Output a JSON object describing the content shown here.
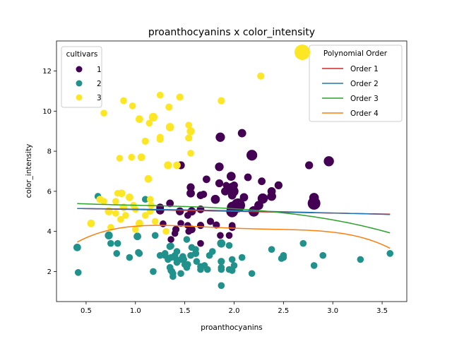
{
  "chart_data": {
    "type": "scatter",
    "title": "proanthocyanins x color_intensity",
    "xlabel": "proanthocyanins",
    "ylabel": "color_intensity",
    "xlim": [
      0.2,
      3.75
    ],
    "ylim": [
      0.5,
      13.5
    ],
    "xticks": [
      0.5,
      1.0,
      1.5,
      2.0,
      2.5,
      3.0,
      3.5
    ],
    "xtick_labels": [
      "0.5",
      "1.0",
      "1.5",
      "2.0",
      "2.5",
      "3.0",
      "3.5"
    ],
    "yticks": [
      2,
      4,
      6,
      8,
      10,
      12
    ],
    "ytick_labels": [
      "2",
      "4",
      "6",
      "8",
      "10",
      "12"
    ],
    "grid": false,
    "size_encoding_note_visible": false,
    "legend_cultivars": {
      "title": "cultivars",
      "placement": "upper-left",
      "entries": [
        {
          "label": "1",
          "color": "#440154"
        },
        {
          "label": "2",
          "color": "#21918c"
        },
        {
          "label": "3",
          "color": "#fde725"
        }
      ]
    },
    "legend_poly": {
      "title": "Polynomial Order",
      "placement": "upper-right",
      "marker_color": "#fde725",
      "entries": [
        {
          "label": "Order 1",
          "color": "#d62728"
        },
        {
          "label": "Order 2",
          "color": "#1f77b4"
        },
        {
          "label": "Order 3",
          "color": "#2ca02c"
        },
        {
          "label": "Order 4",
          "color": "#ff7f0e"
        }
      ]
    },
    "series": [
      {
        "name": "1",
        "color": "#440154",
        "points": [
          [
            2.29,
            5.64,
            90
          ],
          [
            1.28,
            4.38,
            40
          ],
          [
            2.81,
            5.68,
            80
          ],
          [
            2.18,
            7.8,
            100
          ],
          [
            1.82,
            4.32,
            45
          ],
          [
            1.97,
            6.75,
            70
          ],
          [
            1.98,
            5.25,
            75
          ],
          [
            1.25,
            5.05,
            60
          ],
          [
            1.98,
            5.2,
            95
          ],
          [
            1.85,
            7.22,
            65
          ],
          [
            2.38,
            5.75,
            70
          ],
          [
            1.57,
            5.0,
            60
          ],
          [
            1.81,
            5.6,
            70
          ],
          [
            2.81,
            5.4,
            140
          ],
          [
            2.96,
            7.5,
            90
          ],
          [
            1.46,
            7.3,
            55
          ],
          [
            1.97,
            6.2,
            65
          ],
          [
            1.72,
            6.6,
            50
          ],
          [
            1.86,
            8.7,
            75
          ],
          [
            1.66,
            5.1,
            50
          ],
          [
            2.1,
            5.7,
            60
          ],
          [
            1.69,
            5.85,
            45
          ],
          [
            1.46,
            4.4,
            40
          ],
          [
            1.66,
            4.3,
            45
          ],
          [
            1.45,
            5.0,
            55
          ],
          [
            1.35,
            5.4,
            50
          ],
          [
            1.76,
            4.5,
            45
          ],
          [
            1.98,
            4.3,
            40
          ],
          [
            1.25,
            5.2,
            50
          ],
          [
            1.98,
            4.2,
            45
          ],
          [
            1.85,
            6.4,
            55
          ],
          [
            2.38,
            6.0,
            60
          ],
          [
            1.56,
            6.2,
            55
          ],
          [
            1.86,
            3.8,
            40
          ],
          [
            1.66,
            5.8,
            50
          ],
          [
            2.04,
            5.3,
            170
          ],
          [
            2.2,
            5.0,
            95
          ],
          [
            2.14,
            6.7,
            50
          ],
          [
            1.98,
            5.0,
            120
          ],
          [
            2.45,
            6.3,
            55
          ],
          [
            2.08,
            8.9,
            60
          ],
          [
            1.92,
            6.3,
            40
          ],
          [
            1.54,
            4.0,
            40
          ],
          [
            1.53,
            4.8,
            40
          ],
          [
            1.41,
            4.1,
            45
          ],
          [
            1.57,
            4.1,
            50
          ],
          [
            1.36,
            3.6,
            40
          ],
          [
            1.95,
            3.8,
            40
          ],
          [
            2.76,
            7.3,
            55
          ],
          [
            1.98,
            5.8,
            60
          ],
          [
            1.66,
            3.4,
            40
          ],
          [
            1.53,
            4.3,
            40
          ],
          [
            2.0,
            6.3,
            50
          ],
          [
            1.91,
            6.0,
            60
          ],
          [
            2.25,
            5.3,
            70
          ],
          [
            2.28,
            6.5,
            50
          ],
          [
            1.4,
            3.9,
            40
          ],
          [
            1.99,
            6.0,
            100
          ],
          [
            1.56,
            5.9,
            60
          ]
        ]
      },
      {
        "name": "2",
        "color": "#21918c",
        "points": [
          [
            0.41,
            3.2,
            50
          ],
          [
            0.42,
            1.95,
            40
          ],
          [
            0.62,
            5.75,
            40
          ],
          [
            0.73,
            3.8,
            55
          ],
          [
            1.02,
            3.75,
            50
          ],
          [
            1.87,
            3.4,
            60
          ],
          [
            1.35,
            3.25,
            45
          ],
          [
            1.98,
            2.6,
            40
          ],
          [
            0.82,
            3.4,
            40
          ],
          [
            1.61,
            2.9,
            45
          ],
          [
            1.4,
            2.8,
            40
          ],
          [
            1.52,
            3.6,
            40
          ],
          [
            1.36,
            3.27,
            40
          ],
          [
            1.87,
            2.5,
            45
          ],
          [
            2.08,
            2.7,
            40
          ],
          [
            1.57,
            3.2,
            40
          ],
          [
            1.1,
            5.6,
            40
          ],
          [
            1.25,
            2.8,
            40
          ],
          [
            0.81,
            2.9,
            40
          ],
          [
            1.48,
            2.75,
            40
          ],
          [
            1.35,
            2.2,
            40
          ],
          [
            1.37,
            2.0,
            40
          ],
          [
            1.18,
            2.0,
            40
          ],
          [
            1.49,
            2.6,
            40
          ],
          [
            1.46,
            2.6,
            40
          ],
          [
            1.66,
            2.1,
            40
          ],
          [
            1.52,
            2.2,
            40
          ],
          [
            0.94,
            2.7,
            40
          ],
          [
            1.61,
            3.1,
            40
          ],
          [
            1.7,
            2.3,
            40
          ],
          [
            1.4,
            2.7,
            40
          ],
          [
            2.38,
            3.1,
            40
          ],
          [
            2.5,
            2.8,
            40
          ],
          [
            2.9,
            2.8,
            40
          ],
          [
            3.28,
            2.6,
            40
          ],
          [
            3.58,
            2.9,
            40
          ],
          [
            2.81,
            2.3,
            40
          ],
          [
            2.48,
            2.65,
            40
          ],
          [
            1.87,
            2.1,
            40
          ],
          [
            1.62,
            2.5,
            40
          ],
          [
            1.42,
            2.45,
            40
          ],
          [
            1.95,
            2.1,
            40
          ],
          [
            1.87,
            1.3,
            40
          ],
          [
            1.38,
            1.75,
            40
          ],
          [
            1.35,
            2.2,
            40
          ],
          [
            1.03,
            2.95,
            40
          ],
          [
            1.04,
            2.9,
            40
          ],
          [
            2.18,
            1.9,
            40
          ],
          [
            2.7,
            3.4,
            40
          ],
          [
            1.95,
            3.3,
            40
          ],
          [
            2.5,
            2.7,
            40
          ],
          [
            1.42,
            3.0,
            40
          ],
          [
            1.33,
            2.6,
            40
          ],
          [
            1.98,
            2.05,
            40
          ],
          [
            1.46,
            1.9,
            40
          ],
          [
            1.36,
            2.7,
            40
          ],
          [
            1.56,
            2.8,
            40
          ],
          [
            1.3,
            2.9,
            40
          ],
          [
            0.75,
            3.4,
            40
          ],
          [
            1.75,
            2.8,
            40
          ],
          [
            1.2,
            3.8,
            40
          ],
          [
            1.53,
            2.35,
            40
          ],
          [
            1.87,
            2.2,
            40
          ],
          [
            1.36,
            2.05,
            40
          ],
          [
            2.0,
            2.3,
            40
          ],
          [
            1.73,
            2.1,
            40
          ],
          [
            1.38,
            1.9,
            40
          ],
          [
            1.66,
            2.25,
            40
          ],
          [
            1.3,
            2.8,
            40
          ],
          [
            1.5,
            2.35,
            40
          ],
          [
            1.78,
            3.0,
            40
          ]
        ]
      },
      {
        "name": "3",
        "color": "#fde725",
        "points": [
          [
            1.18,
            9.7,
            65
          ],
          [
            0.96,
            7.7,
            40
          ],
          [
            1.04,
            9.6,
            50
          ],
          [
            1.35,
            9.2,
            60
          ],
          [
            1.25,
            10.8,
            40
          ],
          [
            1.34,
            10.2,
            45
          ],
          [
            1.45,
            10.7,
            45
          ],
          [
            0.97,
            10.26,
            40
          ],
          [
            0.84,
            7.65,
            40
          ],
          [
            1.06,
            7.7,
            50
          ],
          [
            1.13,
            6.62,
            50
          ],
          [
            1.33,
            7.3,
            55
          ],
          [
            1.56,
            9.0,
            55
          ],
          [
            1.25,
            8.6,
            45
          ],
          [
            1.42,
            7.3,
            50
          ],
          [
            1.14,
            9.4,
            40
          ],
          [
            0.68,
            9.9,
            40
          ],
          [
            1.25,
            8.7,
            40
          ],
          [
            1.54,
            8.66,
            45
          ],
          [
            0.88,
            10.52,
            40
          ],
          [
            1.87,
            10.52,
            45
          ],
          [
            2.27,
            11.75,
            45
          ],
          [
            1.56,
            7.9,
            40
          ],
          [
            1.1,
            8.5,
            45
          ],
          [
            1.54,
            9.3,
            40
          ],
          [
            1.15,
            5.0,
            40
          ],
          [
            0.55,
            4.4,
            50
          ],
          [
            0.85,
            4.6,
            40
          ],
          [
            0.68,
            5.5,
            40
          ],
          [
            0.8,
            5.5,
            40
          ],
          [
            0.9,
            4.8,
            40
          ],
          [
            0.86,
            5.9,
            50
          ],
          [
            0.88,
            5.2,
            50
          ],
          [
            0.94,
            5.7,
            50
          ],
          [
            0.98,
            5.3,
            40
          ],
          [
            1.0,
            4.1,
            40
          ],
          [
            1.04,
            4.4,
            50
          ],
          [
            0.73,
            5.0,
            55
          ],
          [
            0.8,
            4.9,
            40
          ],
          [
            1.15,
            5.6,
            40
          ],
          [
            0.82,
            5.9,
            40
          ],
          [
            0.64,
            5.6,
            45
          ],
          [
            1.31,
            4.0,
            40
          ],
          [
            0.75,
            4.2,
            40
          ],
          [
            1.0,
            5.1,
            40
          ],
          [
            1.2,
            4.5,
            40
          ],
          [
            1.16,
            5.3,
            40
          ],
          [
            1.1,
            4.8,
            40
          ]
        ]
      }
    ],
    "fit_lines": [
      {
        "name": "Order 1",
        "color": "#d62728",
        "coeffs": [
          5.18,
          -0.089
        ],
        "x_range": [
          0.41,
          3.58
        ]
      },
      {
        "name": "Order 2",
        "color": "#1f77b4",
        "coeffs": [
          5.16,
          -0.035,
          -0.015
        ],
        "x_range": [
          0.41,
          3.58
        ]
      },
      {
        "name": "Order 3",
        "color": "#2ca02c",
        "coeffs": [
          5.49,
          -0.32,
          0.2,
          -0.065
        ],
        "x_range": [
          0.41,
          3.58
        ]
      },
      {
        "name": "Order 4",
        "color": "#ff7f0e",
        "coeffs": [
          1.8,
          5.7,
          -4.6,
          1.55,
          -0.19
        ],
        "x_range": [
          0.41,
          3.58
        ]
      }
    ]
  }
}
